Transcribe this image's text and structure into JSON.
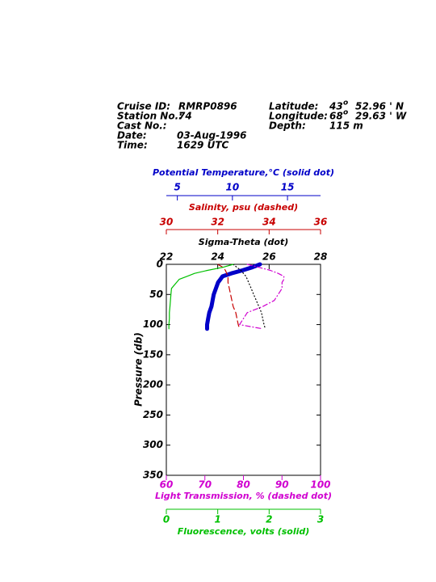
{
  "header": {
    "fields": [
      {
        "label": "Cruise ID:",
        "value": "RMRP0896"
      },
      {
        "label": "Station No.:",
        "value": "74"
      },
      {
        "label": "Cast No.:"
      },
      {
        "label": "Date:",
        "value": "03-Aug-1996"
      },
      {
        "label": "Time:",
        "value": "1629 UTC"
      }
    ],
    "position": [
      {
        "label": "Latitude:",
        "deg": "43",
        "sup": "o",
        "rest": "52.96 ' N"
      },
      {
        "label": "Longitude:",
        "deg": "68",
        "sup": "o",
        "rest": "29.63 ' W"
      },
      {
        "label": "Depth:",
        "rest": "115 m"
      }
    ]
  },
  "chart_data": {
    "type": "profile",
    "ylabel": "Pressure (db)",
    "ylim": [
      0,
      350
    ],
    "yticks": [
      0,
      50,
      100,
      150,
      200,
      250,
      300,
      350
    ],
    "y": [
      0,
      5,
      10,
      15,
      20,
      25,
      30,
      40,
      50,
      60,
      70,
      80,
      90,
      100,
      107
    ],
    "series": [
      {
        "name": "Potential Temperature,°C (solid dot)",
        "color": "#0000c8",
        "style": "thick",
        "xlim": [
          4,
          18
        ],
        "xticks": [
          5,
          10,
          15
        ],
        "values": [
          12.5,
          11.8,
          10.9,
          9.9,
          9.1,
          8.9,
          8.7,
          8.5,
          8.3,
          8.2,
          8.1,
          7.9,
          7.8,
          7.7,
          7.7
        ]
      },
      {
        "name": "Salinity, psu  (dashed)",
        "color": "#c80000",
        "style": "dashed",
        "xlim": [
          30,
          36
        ],
        "xticks": [
          30,
          32,
          34,
          36
        ],
        "values": [
          32.0,
          32.2,
          32.3,
          32.35,
          32.4,
          32.4,
          32.4,
          32.45,
          32.5,
          32.55,
          32.6,
          32.7,
          32.75,
          32.8,
          32.85
        ]
      },
      {
        "name": "Sigma-Theta (dot)",
        "color": "#000000",
        "style": "dotted",
        "xlim": [
          22,
          28
        ],
        "xticks": [
          22,
          24,
          26,
          28
        ],
        "values": [
          24.6,
          24.75,
          24.9,
          25.0,
          25.1,
          25.15,
          25.2,
          25.3,
          25.4,
          25.5,
          25.6,
          25.7,
          25.75,
          25.8,
          25.85
        ]
      },
      {
        "name": "Light Transmission, % (dashed dot)",
        "color": "#d000d0",
        "style": "dashdot",
        "xlim": [
          60,
          100
        ],
        "xticks": [
          60,
          70,
          80,
          90,
          100
        ],
        "values": [
          81,
          84,
          87,
          89,
          90.5,
          90.5,
          90,
          90,
          89,
          88,
          85,
          81,
          80,
          79,
          85
        ]
      },
      {
        "name": "Fluorescence, volts (solid)",
        "color": "#00c000",
        "style": "solid",
        "xlim": [
          0,
          3
        ],
        "xticks": [
          0,
          1,
          2,
          3
        ],
        "values": [
          1.3,
          1.1,
          0.8,
          0.55,
          0.4,
          0.25,
          0.2,
          0.1,
          0.09,
          0.08,
          0.07,
          0.06,
          0.06,
          0.05,
          0.05
        ]
      }
    ]
  }
}
